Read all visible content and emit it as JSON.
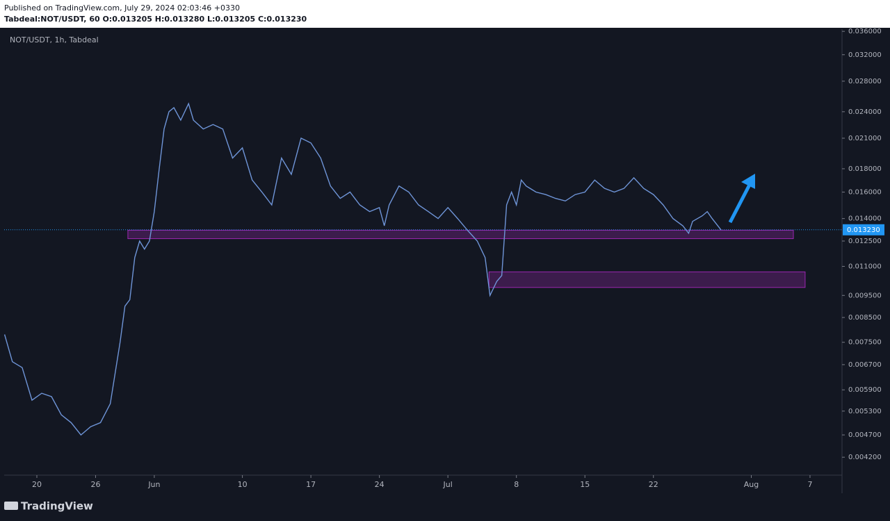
{
  "header": {
    "published": "Published on TradingView.com, July 29, 2024 02:03:46 +0330",
    "symbol_line": "Tabdeal:NOT/USDT, 60 O:0.013205 H:0.013280 L:0.013205 C:0.013230"
  },
  "chart_data": {
    "type": "line",
    "title": "NOT/USDT, 1h, Tabdeal",
    "color": "#6f95d8",
    "log_scale": true,
    "x": [
      16.7,
      17.5,
      18.5,
      19.5,
      20.5,
      21.5,
      22.5,
      23.5,
      24.5,
      25.5,
      26.5,
      27.5,
      28.5,
      29,
      29.5,
      30,
      30.5,
      31,
      31.5,
      32,
      32.5,
      33,
      33.5,
      34,
      34.7,
      35.5,
      36,
      37,
      38,
      39,
      40,
      41,
      42,
      43,
      44,
      45,
      46,
      47,
      48,
      49,
      50,
      51,
      52,
      53,
      54,
      55,
      55.5,
      56,
      57,
      58,
      59,
      60,
      61,
      62,
      63,
      64,
      65,
      65.8,
      66.3,
      67,
      67.5,
      68,
      68.5,
      69,
      69.5,
      70,
      71,
      72,
      73,
      74,
      75,
      76,
      77,
      78,
      79,
      80,
      81,
      82,
      83,
      84,
      85,
      86,
      86.6,
      87,
      88,
      88.5,
      89,
      89.9
    ],
    "values": [
      0.0078,
      0.0068,
      0.0066,
      0.0056,
      0.0058,
      0.0057,
      0.0052,
      0.005,
      0.0047,
      0.0049,
      0.005,
      0.0055,
      0.0075,
      0.009,
      0.0093,
      0.0115,
      0.0125,
      0.012,
      0.0125,
      0.0145,
      0.018,
      0.022,
      0.024,
      0.0245,
      0.023,
      0.025,
      0.023,
      0.022,
      0.0225,
      0.022,
      0.019,
      0.02,
      0.017,
      0.016,
      0.015,
      0.019,
      0.0175,
      0.021,
      0.0205,
      0.019,
      0.0165,
      0.0155,
      0.016,
      0.015,
      0.0145,
      0.0148,
      0.0135,
      0.015,
      0.0165,
      0.016,
      0.015,
      0.0145,
      0.014,
      0.0148,
      0.014,
      0.0132,
      0.0125,
      0.0115,
      0.0095,
      0.0102,
      0.0105,
      0.015,
      0.016,
      0.015,
      0.017,
      0.0165,
      0.016,
      0.0158,
      0.0155,
      0.0153,
      0.0158,
      0.016,
      0.017,
      0.0163,
      0.016,
      0.0163,
      0.0172,
      0.0163,
      0.0158,
      0.015,
      0.014,
      0.0135,
      0.013,
      0.0138,
      0.0142,
      0.0145,
      0.014,
      0.01323
    ],
    "xlim": [
      16.66,
      102.2
    ],
    "ylim": [
      0.00385,
      0.0364
    ],
    "xticks": [
      {
        "value": 20,
        "label": "20"
      },
      {
        "value": 26,
        "label": "26"
      },
      {
        "value": 32,
        "label": "Jun"
      },
      {
        "value": 41,
        "label": "10"
      },
      {
        "value": 48,
        "label": "17"
      },
      {
        "value": 55,
        "label": "24"
      },
      {
        "value": 62,
        "label": "Jul"
      },
      {
        "value": 69,
        "label": "8"
      },
      {
        "value": 76,
        "label": "15"
      },
      {
        "value": 83,
        "label": "22"
      },
      {
        "value": 93,
        "label": "Aug"
      },
      {
        "value": 99,
        "label": "7"
      }
    ],
    "yticks": [
      {
        "value": 0.0042,
        "label": "0.004200"
      },
      {
        "value": 0.0047,
        "label": "0.004700"
      },
      {
        "value": 0.0053,
        "label": "0.005300"
      },
      {
        "value": 0.0059,
        "label": "0.005900"
      },
      {
        "value": 0.0067,
        "label": "0.006700"
      },
      {
        "value": 0.0075,
        "label": "0.007500"
      },
      {
        "value": 0.0085,
        "label": "0.008500"
      },
      {
        "value": 0.0095,
        "label": "0.009500"
      },
      {
        "value": 0.011,
        "label": "0.011000"
      },
      {
        "value": 0.0125,
        "label": "0.012500"
      },
      {
        "value": 0.014,
        "label": "0.014000"
      },
      {
        "value": 0.016,
        "label": "0.016000"
      },
      {
        "value": 0.018,
        "label": "0.018000"
      },
      {
        "value": 0.021,
        "label": "0.021000"
      },
      {
        "value": 0.024,
        "label": "0.024000"
      },
      {
        "value": 0.028,
        "label": "0.028000"
      },
      {
        "value": 0.032,
        "label": "0.032000"
      },
      {
        "value": 0.036,
        "label": "0.036000"
      }
    ],
    "last_price": {
      "value": 0.01323,
      "label": "0.013230"
    },
    "zones": [
      {
        "x": [
          29.3,
          97.3
        ],
        "y": [
          0.01265,
          0.0132
        ]
      },
      {
        "x": [
          66.2,
          98.5
        ],
        "y": [
          0.00989,
          0.0107
        ]
      }
    ],
    "zone_color": "#9c27b0"
  },
  "footer": {
    "brand": "TradingView"
  }
}
